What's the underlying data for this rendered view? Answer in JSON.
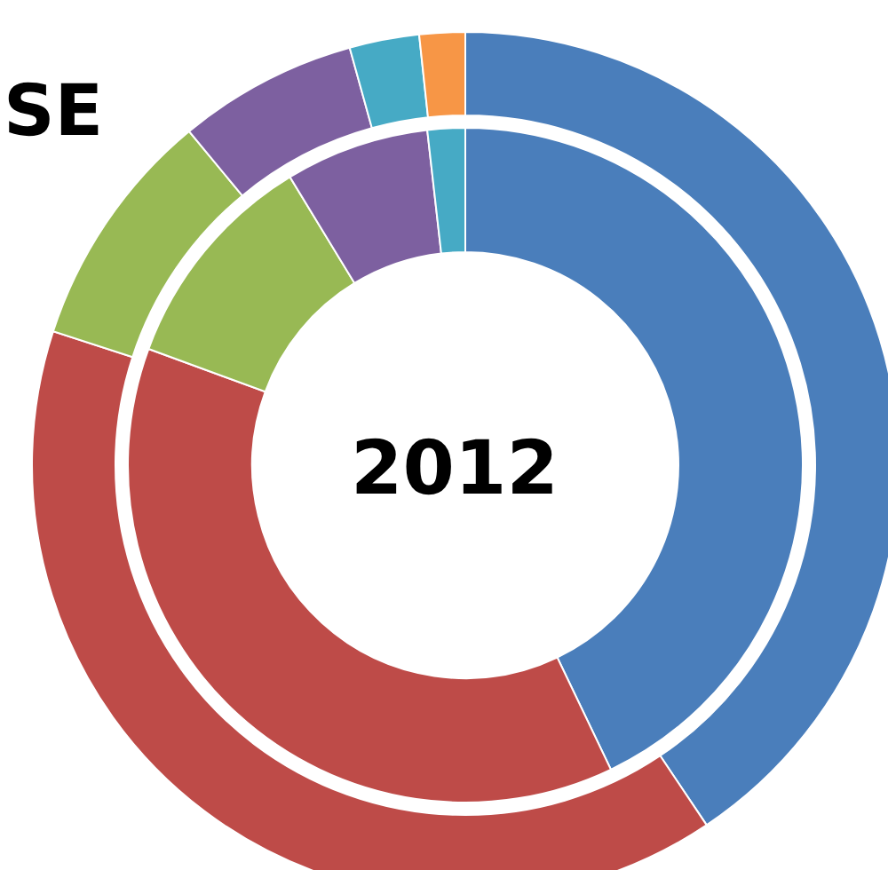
{
  "chart_data": {
    "type": "donut",
    "title": "SE",
    "annotations": [
      "2012"
    ],
    "categories": [
      null,
      null,
      null,
      null,
      null,
      null
    ],
    "series": [
      {
        "colors": [
          "#4a7ebb",
          "#be4b48",
          "#98b954",
          "#7d60a0",
          "#46aac5",
          "#f79646"
        ],
        "values": [
          40.6,
          39.4,
          9,
          6.7,
          2.6,
          1.7
        ]
      },
      {
        "colors": [
          "#4a7ebb",
          "#be4b48",
          "#98b954",
          "#7d60a0",
          "#46aac5",
          "#f79646"
        ],
        "values": [
          42.9,
          37.7,
          10.7,
          6.9,
          1.8,
          null
        ]
      }
    ]
  }
}
